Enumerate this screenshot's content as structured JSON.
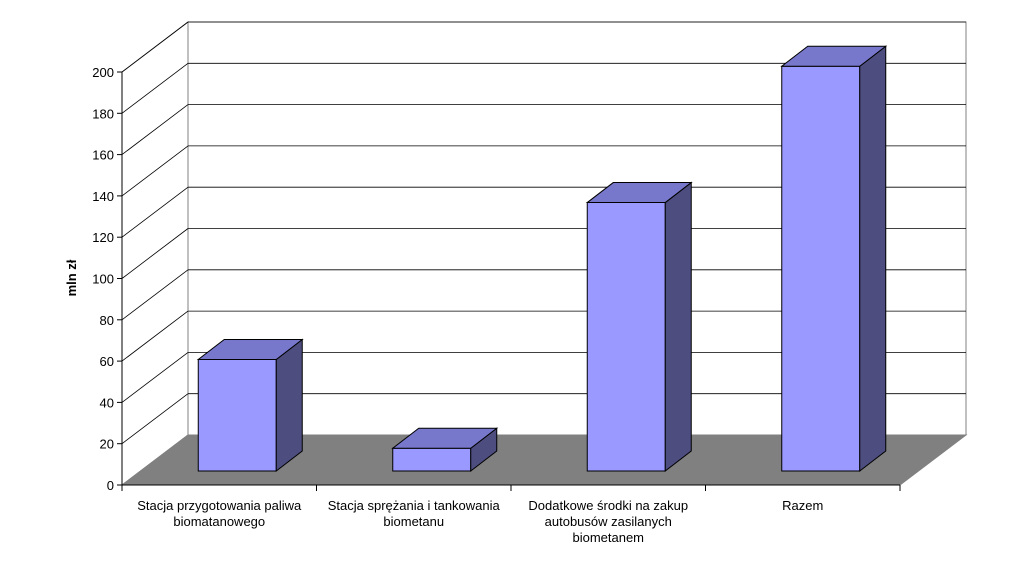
{
  "chart_data": {
    "type": "bar",
    "style": "3d-column",
    "ylabel": "mln zł",
    "ylim": [
      0,
      200
    ],
    "yticks": [
      0,
      20,
      40,
      60,
      80,
      100,
      120,
      140,
      160,
      180,
      200
    ],
    "grid": true,
    "categories": [
      [
        "Stacja przygotowania paliwa",
        "biomatanowego"
      ],
      [
        "Stacja sprężania i tankowania",
        "biometanu"
      ],
      [
        "Dodatkowe środki na zakup",
        "autobusów zasilanych",
        "biometanem"
      ],
      [
        "Razem"
      ]
    ],
    "values": [
      54,
      11,
      130,
      196
    ],
    "colors": {
      "bar_front": "#9999ff",
      "bar_top": "#7777cc",
      "bar_side": "#4d4d80",
      "floor": "#808080",
      "wall": "#ffffff",
      "grid": "#000000"
    }
  }
}
